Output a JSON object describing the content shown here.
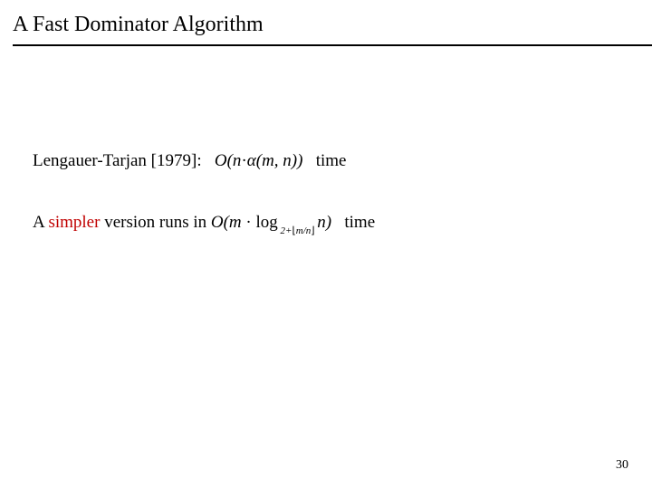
{
  "title": "A Fast Dominator Algorithm",
  "line1": {
    "author_year": "Lengauer-Tarjan [1979]:",
    "complexity_open": "O(n",
    "dot1": "·",
    "alpha": "α",
    "complexity_close": "(m, n))",
    "time_word": "time"
  },
  "line2": {
    "prefix": "A ",
    "simpler": "simpler",
    "runs_in": " version runs in ",
    "o_open": "O(m",
    "dot": " · ",
    "log": "log",
    "sub_prefix": " 2+",
    "floor_l": "⌊",
    "sub_mn": "m/n",
    "floor_r": "⌋ ",
    "n_close": "n)",
    "time_word": "time"
  },
  "page_number": "30",
  "colors": {
    "highlight": "#c00000",
    "rule": "#000000"
  }
}
